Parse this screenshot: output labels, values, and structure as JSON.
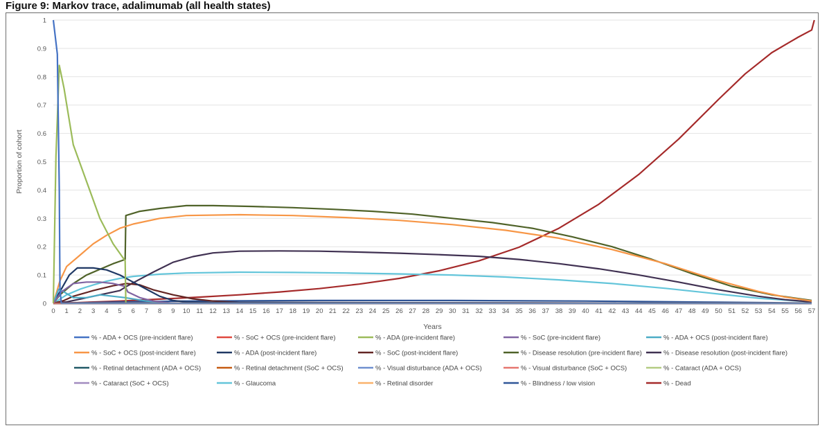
{
  "figure_title": "Figure 9: Markov trace, adalimumab (all health states)",
  "chart_data": {
    "type": "line",
    "title": "",
    "xlabel": "Years",
    "ylabel": "Proportion of cohort",
    "xlim": [
      0,
      57
    ],
    "ylim": [
      0,
      1
    ],
    "x_ticks": [
      0,
      1,
      2,
      3,
      4,
      5,
      6,
      7,
      8,
      9,
      10,
      11,
      12,
      13,
      14,
      15,
      16,
      17,
      18,
      19,
      20,
      21,
      22,
      23,
      24,
      25,
      26,
      27,
      28,
      29,
      30,
      31,
      32,
      33,
      34,
      35,
      36,
      37,
      38,
      39,
      40,
      41,
      42,
      43,
      44,
      45,
      46,
      47,
      48,
      49,
      50,
      51,
      52,
      53,
      54,
      55,
      56,
      57
    ],
    "y_ticks": [
      0,
      0.1,
      0.2,
      0.3,
      0.4,
      0.5,
      0.6,
      0.7,
      0.8,
      0.9,
      1
    ],
    "grid": "horizontal",
    "legend_position": "bottom",
    "series": [
      {
        "name": "% - ADA + OCS (pre-incident flare)",
        "color": "#4472c4",
        "points": [
          [
            0,
            1
          ],
          [
            0.3,
            0.88
          ],
          [
            0.45,
            0.4
          ],
          [
            0.5,
            0.05
          ],
          [
            0.6,
            0
          ],
          [
            57,
            0
          ]
        ]
      },
      {
        "name": "% - SoC + OCS (pre-incident flare)",
        "color": "#e0483e",
        "points": [
          [
            0,
            0
          ],
          [
            57,
            0
          ]
        ]
      },
      {
        "name": "% - ADA (pre-incident flare)",
        "color": "#9bbb59",
        "points": [
          [
            0,
            0
          ],
          [
            0.2,
            0.52
          ],
          [
            0.45,
            0.84
          ],
          [
            0.8,
            0.76
          ],
          [
            1.5,
            0.56
          ],
          [
            2.5,
            0.43
          ],
          [
            3.5,
            0.3
          ],
          [
            4.5,
            0.21
          ],
          [
            5.4,
            0.15
          ],
          [
            5.45,
            0
          ],
          [
            57,
            0
          ]
        ]
      },
      {
        "name": "% - SoC (pre-incident flare)",
        "color": "#8064a2",
        "points": [
          [
            0,
            0
          ],
          [
            0.6,
            0.04
          ],
          [
            1.5,
            0.07
          ],
          [
            2.5,
            0.075
          ],
          [
            3.5,
            0.075
          ],
          [
            4.5,
            0.07
          ],
          [
            5.4,
            0.06
          ],
          [
            5.6,
            0.04
          ],
          [
            6.5,
            0.02
          ],
          [
            7.5,
            0.008
          ],
          [
            9,
            0
          ],
          [
            57,
            0
          ]
        ]
      },
      {
        "name": "% - ADA + OCS (post-incident flare)",
        "color": "#4bacc6",
        "points": [
          [
            0,
            0
          ],
          [
            0.4,
            0.05
          ],
          [
            0.8,
            0.04
          ],
          [
            1.5,
            0.02
          ],
          [
            2.5,
            0.02
          ],
          [
            3.5,
            0.03
          ],
          [
            4.5,
            0.025
          ],
          [
            5.4,
            0.02
          ],
          [
            7,
            0.008
          ],
          [
            9,
            0
          ],
          [
            57,
            0
          ]
        ]
      },
      {
        "name": "% - SoC + OCS (post-incident flare)",
        "color": "#f79646",
        "points": [
          [
            0,
            0
          ],
          [
            0.5,
            0.08
          ],
          [
            1,
            0.13
          ],
          [
            2,
            0.17
          ],
          [
            3,
            0.21
          ],
          [
            4,
            0.24
          ],
          [
            5,
            0.265
          ],
          [
            6,
            0.28
          ],
          [
            8,
            0.3
          ],
          [
            10,
            0.31
          ],
          [
            14,
            0.313
          ],
          [
            18,
            0.31
          ],
          [
            22,
            0.303
          ],
          [
            26,
            0.293
          ],
          [
            30,
            0.278
          ],
          [
            34,
            0.258
          ],
          [
            38,
            0.23
          ],
          [
            42,
            0.19
          ],
          [
            46,
            0.14
          ],
          [
            50,
            0.08
          ],
          [
            53,
            0.042
          ],
          [
            55,
            0.022
          ],
          [
            57,
            0.008
          ]
        ]
      },
      {
        "name": "% - ADA (post-incident flare)",
        "color": "#1f3864",
        "points": [
          [
            0,
            0
          ],
          [
            0.6,
            0.05
          ],
          [
            1.2,
            0.1
          ],
          [
            1.8,
            0.125
          ],
          [
            3,
            0.125
          ],
          [
            4,
            0.118
          ],
          [
            5,
            0.1
          ],
          [
            5.8,
            0.08
          ],
          [
            7,
            0.05
          ],
          [
            8,
            0.025
          ],
          [
            9,
            0.01
          ],
          [
            10,
            0.005
          ],
          [
            12,
            0.003
          ],
          [
            57,
            0
          ]
        ]
      },
      {
        "name": "% - SoC (post-incident flare)",
        "color": "#632523",
        "points": [
          [
            0,
            0
          ],
          [
            0.8,
            0.01
          ],
          [
            1.5,
            0.025
          ],
          [
            3,
            0.045
          ],
          [
            4.5,
            0.062
          ],
          [
            5.5,
            0.07
          ],
          [
            6.5,
            0.065
          ],
          [
            7.5,
            0.048
          ],
          [
            9,
            0.03
          ],
          [
            10.5,
            0.016
          ],
          [
            12,
            0.008
          ],
          [
            14,
            0.003
          ],
          [
            57,
            0
          ]
        ]
      },
      {
        "name": "% - Disease resolution (pre-incident flare)",
        "color": "#4f6228",
        "points": [
          [
            0,
            0
          ],
          [
            0.5,
            0.03
          ],
          [
            1.5,
            0.07
          ],
          [
            2.5,
            0.1
          ],
          [
            3.5,
            0.12
          ],
          [
            4.5,
            0.14
          ],
          [
            5.4,
            0.155
          ],
          [
            5.45,
            0.31
          ],
          [
            6.5,
            0.325
          ],
          [
            8,
            0.335
          ],
          [
            10,
            0.345
          ],
          [
            12,
            0.345
          ],
          [
            15,
            0.342
          ],
          [
            18,
            0.338
          ],
          [
            21,
            0.332
          ],
          [
            24,
            0.325
          ],
          [
            27,
            0.315
          ],
          [
            30,
            0.3
          ],
          [
            33,
            0.285
          ],
          [
            36,
            0.265
          ],
          [
            39,
            0.235
          ],
          [
            42,
            0.2
          ],
          [
            45,
            0.155
          ],
          [
            48,
            0.105
          ],
          [
            51,
            0.06
          ],
          [
            54,
            0.03
          ],
          [
            57,
            0.01
          ]
        ]
      },
      {
        "name": "% - Disease resolution (post-incident flare)",
        "color": "#403152",
        "points": [
          [
            0,
            0
          ],
          [
            1,
            0.005
          ],
          [
            2,
            0.015
          ],
          [
            3,
            0.025
          ],
          [
            4,
            0.035
          ],
          [
            5,
            0.045
          ],
          [
            5.5,
            0.06
          ],
          [
            6.5,
            0.085
          ],
          [
            7.5,
            0.11
          ],
          [
            9,
            0.145
          ],
          [
            10.5,
            0.165
          ],
          [
            12,
            0.178
          ],
          [
            14,
            0.184
          ],
          [
            17,
            0.185
          ],
          [
            20,
            0.184
          ],
          [
            23,
            0.181
          ],
          [
            26,
            0.177
          ],
          [
            29,
            0.172
          ],
          [
            32,
            0.166
          ],
          [
            35,
            0.155
          ],
          [
            38,
            0.14
          ],
          [
            41,
            0.122
          ],
          [
            44,
            0.1
          ],
          [
            47,
            0.075
          ],
          [
            50,
            0.048
          ],
          [
            53,
            0.025
          ],
          [
            55,
            0.013
          ],
          [
            57,
            0.005
          ]
        ]
      },
      {
        "name": "% - Retinal detachment (ADA + OCS)",
        "color": "#215967",
        "points": [
          [
            0,
            0
          ],
          [
            57,
            0
          ]
        ]
      },
      {
        "name": "% - Retinal detachment (SoC + OCS)",
        "color": "#c55a11",
        "points": [
          [
            0,
            0
          ],
          [
            57,
            0
          ]
        ]
      },
      {
        "name": "% - Visual disturbance (ADA + OCS)",
        "color": "#6f8fcf",
        "points": [
          [
            0,
            0
          ],
          [
            57,
            0
          ]
        ]
      },
      {
        "name": "% - Visual disturbance (SoC + OCS)",
        "color": "#e6766f",
        "points": [
          [
            0,
            0
          ],
          [
            57,
            0
          ]
        ]
      },
      {
        "name": "% - Cataract (ADA + OCS)",
        "color": "#b3cc82",
        "points": [
          [
            0,
            0
          ],
          [
            57,
            0
          ]
        ]
      },
      {
        "name": "% - Cataract (SoC + OCS)",
        "color": "#a18bbf",
        "points": [
          [
            0,
            0
          ],
          [
            57,
            0
          ]
        ]
      },
      {
        "name": "% - Glaucoma",
        "color": "#63c5da",
        "points": [
          [
            0,
            0
          ],
          [
            1,
            0.03
          ],
          [
            2,
            0.05
          ],
          [
            3,
            0.065
          ],
          [
            4,
            0.078
          ],
          [
            5,
            0.088
          ],
          [
            6,
            0.095
          ],
          [
            8,
            0.103
          ],
          [
            10,
            0.107
          ],
          [
            14,
            0.11
          ],
          [
            18,
            0.109
          ],
          [
            22,
            0.107
          ],
          [
            26,
            0.104
          ],
          [
            30,
            0.1
          ],
          [
            34,
            0.093
          ],
          [
            38,
            0.083
          ],
          [
            42,
            0.07
          ],
          [
            46,
            0.053
          ],
          [
            50,
            0.033
          ],
          [
            53,
            0.018
          ],
          [
            57,
            0.005
          ]
        ]
      },
      {
        "name": "% - Retinal disorder",
        "color": "#fab16b",
        "points": [
          [
            0,
            0
          ],
          [
            57,
            0
          ]
        ]
      },
      {
        "name": "% - Blindness / low vision",
        "color": "#2f5597",
        "points": [
          [
            0,
            0
          ],
          [
            2,
            0.002
          ],
          [
            5,
            0.005
          ],
          [
            10,
            0.008
          ],
          [
            20,
            0.01
          ],
          [
            30,
            0.01
          ],
          [
            40,
            0.008
          ],
          [
            50,
            0.004
          ],
          [
            57,
            0.001
          ]
        ]
      },
      {
        "name": "% - Dead",
        "color": "#a52a2a",
        "points": [
          [
            0,
            0
          ],
          [
            2,
            0.003
          ],
          [
            5,
            0.008
          ],
          [
            8,
            0.015
          ],
          [
            11,
            0.022
          ],
          [
            14,
            0.03
          ],
          [
            17,
            0.04
          ],
          [
            20,
            0.052
          ],
          [
            23,
            0.068
          ],
          [
            26,
            0.088
          ],
          [
            29,
            0.115
          ],
          [
            32,
            0.15
          ],
          [
            35,
            0.198
          ],
          [
            38,
            0.265
          ],
          [
            41,
            0.35
          ],
          [
            44,
            0.455
          ],
          [
            47,
            0.58
          ],
          [
            50,
            0.72
          ],
          [
            52,
            0.81
          ],
          [
            54,
            0.885
          ],
          [
            56,
            0.94
          ],
          [
            57,
            0.965
          ],
          [
            57.2,
            1
          ]
        ]
      }
    ]
  }
}
